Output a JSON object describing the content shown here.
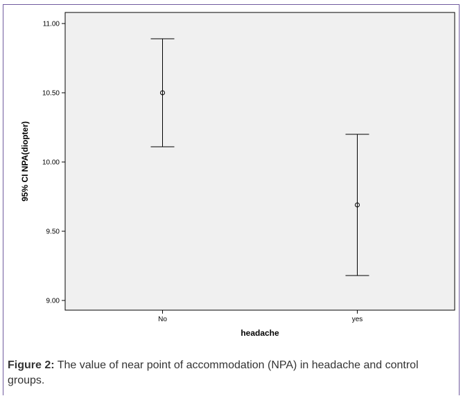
{
  "chart_data": {
    "type": "errorbar",
    "xlabel": "headache",
    "ylabel": "95% CI NPA(diopter)",
    "categories": [
      "No",
      "yes"
    ],
    "means": [
      10.5,
      9.69
    ],
    "ci_lower": [
      10.11,
      9.18
    ],
    "ci_upper": [
      10.89,
      10.2
    ],
    "ylim": [
      8.93,
      11.08
    ],
    "yticks": [
      "9.00",
      "9.50",
      "10.00",
      "10.50",
      "11.00"
    ],
    "grid": false,
    "colors": {
      "plot_background": "#f0f0f0",
      "ink": "#000000",
      "frame": "#6f5a9e"
    }
  },
  "caption": {
    "lead": "Figure 2:",
    "text": " The value of near point of accommodation (NPA) in headache and control groups."
  }
}
